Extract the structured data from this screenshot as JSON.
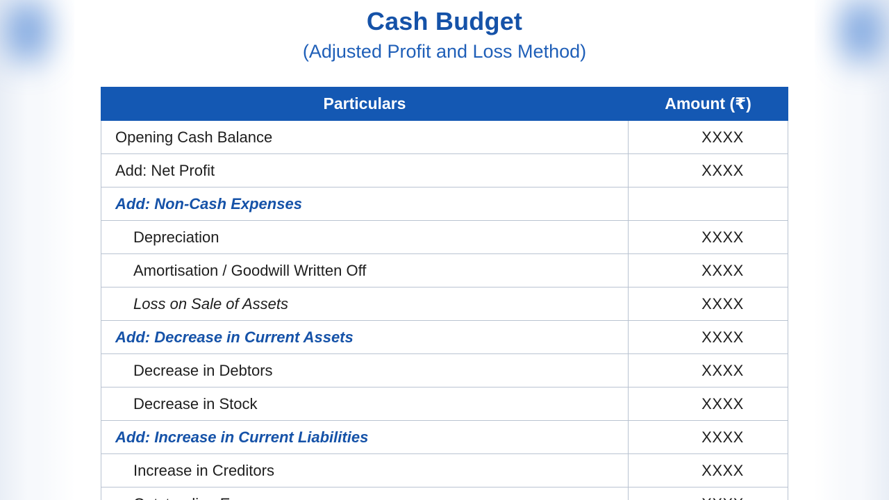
{
  "document": {
    "title": "Cash Budget",
    "subtitle": "(Adjusted Profit and Loss Method)"
  },
  "table": {
    "headers": {
      "particulars": "Particulars",
      "amount": "Amount (₹)"
    },
    "rows": [
      {
        "label": "Opening Cash Balance",
        "amount": "XXXX",
        "style": "normal"
      },
      {
        "label": "Add: Net Profit",
        "amount": "XXXX",
        "style": "normal"
      },
      {
        "label": "Add: Non-Cash Expenses",
        "amount": "",
        "style": "heading"
      },
      {
        "label": "Depreciation",
        "amount": "XXXX",
        "style": "indent"
      },
      {
        "label": "Amortisation / Goodwill Written Off",
        "amount": "XXXX",
        "style": "indent"
      },
      {
        "label": "Loss on Sale of Assets",
        "amount": "XXXX",
        "style": "indent-italic"
      },
      {
        "label": "Add: Decrease in Current Assets",
        "amount": "XXXX",
        "style": "heading"
      },
      {
        "label": "Decrease in Debtors",
        "amount": "XXXX",
        "style": "indent"
      },
      {
        "label": "Decrease in Stock",
        "amount": "XXXX",
        "style": "indent"
      },
      {
        "label": "Add: Increase in Current Liabilities",
        "amount": "XXXX",
        "style": "heading"
      },
      {
        "label": "Increase in Creditors",
        "amount": "XXXX",
        "style": "indent"
      },
      {
        "label": "Outstanding Expenses",
        "amount": "XXXX",
        "style": "indent"
      }
    ]
  },
  "colors": {
    "accent": "#1552a8",
    "header_bg": "#1458b3",
    "grid": "#b9c3d1"
  }
}
